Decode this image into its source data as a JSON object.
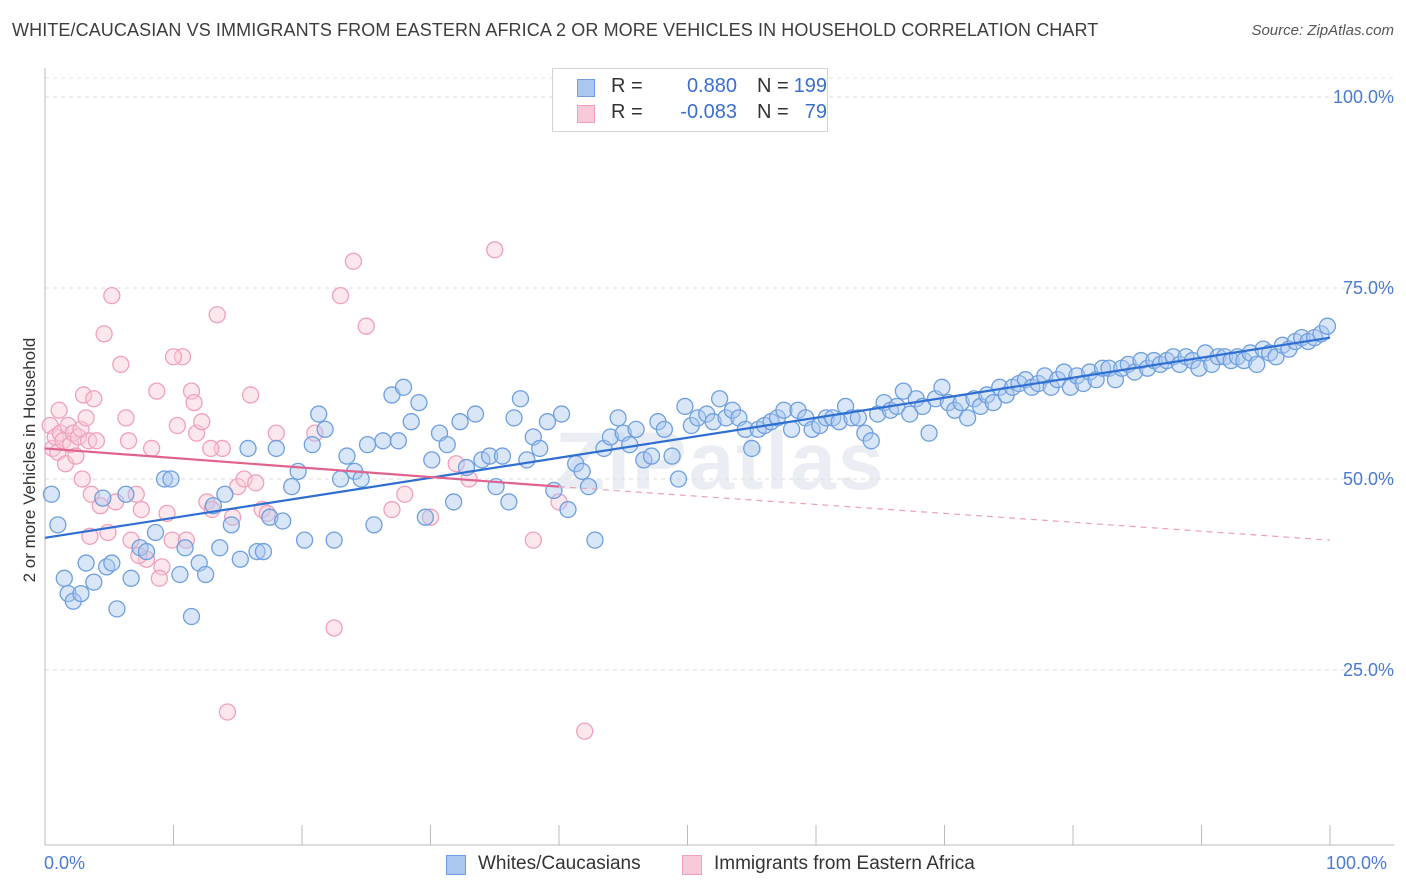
{
  "title": "WHITE/CAUCASIAN VS IMMIGRANTS FROM EASTERN AFRICA 2 OR MORE VEHICLES IN HOUSEHOLD CORRELATION CHART",
  "source": "Source: ZipAtlas.com",
  "watermark": "ZIPatlas",
  "colors": {
    "blue": "#6e9fe0",
    "blue_fill": "#aac8ef",
    "blue_line": "#2f6fd1",
    "pink": "#f0a0bb",
    "pink_fill": "#f8c9d8",
    "pink_line": "#e0628e",
    "tick_text": "#4a7bd0"
  },
  "legend": {
    "rows": [
      {
        "r_label": "R =",
        "r_value": "0.880",
        "n_label": "N =",
        "n_value": "199"
      },
      {
        "r_label": "R =",
        "r_value": "-0.083",
        "n_label": "N =",
        "n_value": "79"
      }
    ]
  },
  "bottom_legend": {
    "series1": "Whites/Caucasians",
    "series2": "Immigrants from Eastern Africa"
  },
  "chart_data": {
    "type": "scatter",
    "title": "WHITE/CAUCASIAN VS IMMIGRANTS FROM EASTERN AFRICA 2 OR MORE VEHICLES IN HOUSEHOLD CORRELATION CHART",
    "xlabel": "",
    "ylabel": "2 or more Vehicles in Household",
    "xlim": [
      0,
      100
    ],
    "ylim": [
      0,
      104
    ],
    "x_tick_labels": [
      "0.0%",
      "100.0%"
    ],
    "y_tick_labels": [
      "25.0%",
      "50.0%",
      "75.0%",
      "100.0%"
    ],
    "y_ticks": [
      25,
      50,
      75,
      100
    ],
    "grid": "horizontal dashed",
    "legend_position": "top-center",
    "series": [
      {
        "name": "Whites/Caucasians",
        "color": "#6e9fe0",
        "trend": {
          "x": [
            0,
            100
          ],
          "y": [
            42.3,
            68.5
          ]
        },
        "points": [
          [
            0.5,
            48
          ],
          [
            1,
            44
          ],
          [
            1.5,
            37
          ],
          [
            1.8,
            35
          ],
          [
            2.2,
            34
          ],
          [
            2.8,
            35
          ],
          [
            3.2,
            39
          ],
          [
            3.8,
            36.5
          ],
          [
            4.5,
            47.5
          ],
          [
            4.8,
            38.5
          ],
          [
            5.2,
            39
          ],
          [
            5.6,
            33
          ],
          [
            6.3,
            48
          ],
          [
            6.7,
            37
          ],
          [
            7.4,
            41
          ],
          [
            7.9,
            40.5
          ],
          [
            8.6,
            43
          ],
          [
            9.3,
            50
          ],
          [
            9.8,
            50
          ],
          [
            10.5,
            37.5
          ],
          [
            10.9,
            41
          ],
          [
            11.4,
            32
          ],
          [
            12,
            39
          ],
          [
            12.5,
            37.5
          ],
          [
            13.1,
            46.5
          ],
          [
            13.6,
            41
          ],
          [
            14,
            48
          ],
          [
            14.5,
            44
          ],
          [
            15.2,
            39.5
          ],
          [
            15.8,
            54
          ],
          [
            16.5,
            40.5
          ],
          [
            17,
            40.5
          ],
          [
            17.5,
            45
          ],
          [
            18,
            54
          ],
          [
            18.5,
            44.5
          ],
          [
            19.2,
            49
          ],
          [
            19.7,
            51
          ],
          [
            20.2,
            42
          ],
          [
            20.8,
            54.5
          ],
          [
            21.3,
            58.5
          ],
          [
            21.8,
            56.5
          ],
          [
            22.5,
            42
          ],
          [
            23,
            50
          ],
          [
            23.5,
            53
          ],
          [
            24.1,
            51
          ],
          [
            24.6,
            50
          ],
          [
            25.1,
            54.5
          ],
          [
            25.6,
            44
          ],
          [
            26.3,
            55
          ],
          [
            27,
            61
          ],
          [
            27.5,
            55
          ],
          [
            27.9,
            62
          ],
          [
            28.5,
            57.5
          ],
          [
            29.1,
            60
          ],
          [
            29.6,
            45
          ],
          [
            30.1,
            52.5
          ],
          [
            30.7,
            56
          ],
          [
            31.3,
            54.5
          ],
          [
            31.8,
            47
          ],
          [
            32.3,
            57.5
          ],
          [
            32.8,
            51.5
          ],
          [
            33.5,
            58.5
          ],
          [
            34,
            52.5
          ],
          [
            34.6,
            53
          ],
          [
            35.1,
            49
          ],
          [
            35.6,
            53
          ],
          [
            36.1,
            47
          ],
          [
            36.5,
            58
          ],
          [
            37,
            60.5
          ],
          [
            37.5,
            52.5
          ],
          [
            38,
            55.5
          ],
          [
            38.5,
            54
          ],
          [
            39.1,
            57.5
          ],
          [
            39.6,
            48.5
          ],
          [
            40.2,
            58.5
          ],
          [
            40.7,
            46
          ],
          [
            41.3,
            52
          ],
          [
            41.8,
            51
          ],
          [
            42.3,
            49
          ],
          [
            42.8,
            42
          ],
          [
            43.5,
            54
          ],
          [
            44,
            55.5
          ],
          [
            44.6,
            58
          ],
          [
            45,
            56
          ],
          [
            45.5,
            54.5
          ],
          [
            46,
            56.5
          ],
          [
            46.6,
            52.5
          ],
          [
            47.2,
            53
          ],
          [
            47.7,
            57.5
          ],
          [
            48.2,
            56.5
          ],
          [
            48.8,
            53
          ],
          [
            49.3,
            50
          ],
          [
            49.8,
            59.5
          ],
          [
            50.3,
            57
          ],
          [
            50.8,
            58
          ],
          [
            51.5,
            58.5
          ],
          [
            52,
            57.5
          ],
          [
            52.5,
            60.5
          ],
          [
            53,
            58
          ],
          [
            53.5,
            59
          ],
          [
            54,
            58
          ],
          [
            54.5,
            56.5
          ],
          [
            55,
            54
          ],
          [
            55.5,
            56.5
          ],
          [
            56,
            57
          ],
          [
            56.5,
            57.5
          ],
          [
            57,
            58
          ],
          [
            57.5,
            59
          ],
          [
            58.1,
            56.5
          ],
          [
            58.6,
            59
          ],
          [
            59.2,
            58
          ],
          [
            59.7,
            56.5
          ],
          [
            60.3,
            57
          ],
          [
            60.8,
            58
          ],
          [
            61.3,
            58
          ],
          [
            61.8,
            57.5
          ],
          [
            62.3,
            59.5
          ],
          [
            62.8,
            58
          ],
          [
            63.3,
            58
          ],
          [
            63.8,
            56
          ],
          [
            64.3,
            55
          ],
          [
            64.8,
            58.5
          ],
          [
            65.3,
            60
          ],
          [
            65.8,
            59
          ],
          [
            66.3,
            59.5
          ],
          [
            66.8,
            61.5
          ],
          [
            67.3,
            58.5
          ],
          [
            67.8,
            60.5
          ],
          [
            68.3,
            59.5
          ],
          [
            68.8,
            56
          ],
          [
            69.3,
            60.5
          ],
          [
            69.8,
            62
          ],
          [
            70.3,
            60
          ],
          [
            70.8,
            59
          ],
          [
            71.3,
            60
          ],
          [
            71.8,
            58
          ],
          [
            72.3,
            60.5
          ],
          [
            72.8,
            59.5
          ],
          [
            73.3,
            61
          ],
          [
            73.8,
            60
          ],
          [
            74.3,
            62
          ],
          [
            74.8,
            61
          ],
          [
            75.3,
            62
          ],
          [
            75.8,
            62.5
          ],
          [
            76.3,
            63
          ],
          [
            76.8,
            62
          ],
          [
            77.3,
            62.5
          ],
          [
            77.8,
            63.5
          ],
          [
            78.3,
            62
          ],
          [
            78.8,
            63
          ],
          [
            79.3,
            64
          ],
          [
            79.8,
            62
          ],
          [
            80.3,
            63.5
          ],
          [
            80.8,
            62.5
          ],
          [
            81.3,
            64
          ],
          [
            81.8,
            63
          ],
          [
            82.3,
            64.5
          ],
          [
            82.8,
            64.5
          ],
          [
            83.3,
            63
          ],
          [
            83.8,
            64.5
          ],
          [
            84.3,
            65
          ],
          [
            84.8,
            64
          ],
          [
            85.3,
            65.5
          ],
          [
            85.8,
            64.5
          ],
          [
            86.3,
            65.5
          ],
          [
            86.8,
            65
          ],
          [
            87.3,
            65.5
          ],
          [
            87.8,
            66
          ],
          [
            88.3,
            65
          ],
          [
            88.8,
            66
          ],
          [
            89.3,
            65.5
          ],
          [
            89.8,
            64.5
          ],
          [
            90.3,
            66.5
          ],
          [
            90.8,
            65
          ],
          [
            91.3,
            66
          ],
          [
            91.8,
            66
          ],
          [
            92.3,
            65.5
          ],
          [
            92.8,
            66
          ],
          [
            93.3,
            65.5
          ],
          [
            93.8,
            66.5
          ],
          [
            94.3,
            65
          ],
          [
            94.8,
            67
          ],
          [
            95.3,
            66.5
          ],
          [
            95.8,
            66
          ],
          [
            96.3,
            67.5
          ],
          [
            96.8,
            67
          ],
          [
            97.3,
            68
          ],
          [
            97.8,
            68.5
          ],
          [
            98.3,
            68
          ],
          [
            98.8,
            68.5
          ],
          [
            99.3,
            69
          ],
          [
            99.8,
            70
          ]
        ]
      },
      {
        "name": "Immigrants from Eastern Africa",
        "color": "#f0a0bb",
        "trend": {
          "x": [
            0,
            40
          ],
          "y": [
            54,
            49
          ],
          "dashed_extension": {
            "x": [
              40,
              100
            ],
            "y": [
              49,
              42
            ]
          }
        },
        "points": [
          [
            0.4,
            57
          ],
          [
            0.6,
            54
          ],
          [
            0.8,
            55.5
          ],
          [
            1,
            53.5
          ],
          [
            1.2,
            56
          ],
          [
            1.4,
            55
          ],
          [
            1.6,
            52
          ],
          [
            1.8,
            57
          ],
          [
            2,
            54.5
          ],
          [
            2.2,
            56
          ],
          [
            2.4,
            53
          ],
          [
            2.6,
            55.5
          ],
          [
            2.8,
            56.5
          ],
          [
            3,
            61
          ],
          [
            3.2,
            58
          ],
          [
            3.4,
            55
          ],
          [
            3.6,
            48
          ],
          [
            3.8,
            60.5
          ],
          [
            4,
            55
          ],
          [
            4.3,
            46.5
          ],
          [
            4.6,
            69
          ],
          [
            4.9,
            43
          ],
          [
            5.2,
            74
          ],
          [
            5.5,
            47
          ],
          [
            5.9,
            65
          ],
          [
            6.3,
            58
          ],
          [
            6.7,
            42
          ],
          [
            7.1,
            48
          ],
          [
            7.5,
            46
          ],
          [
            7.9,
            39.5
          ],
          [
            8.3,
            54
          ],
          [
            8.7,
            61.5
          ],
          [
            9.1,
            38.5
          ],
          [
            9.5,
            45.5
          ],
          [
            9.9,
            42
          ],
          [
            10.3,
            57
          ],
          [
            10.7,
            66
          ],
          [
            11,
            42
          ],
          [
            11.4,
            61.5
          ],
          [
            11.8,
            56
          ],
          [
            12.2,
            57.5
          ],
          [
            12.6,
            47
          ],
          [
            13,
            46
          ],
          [
            13.4,
            71.5
          ],
          [
            13.8,
            54
          ],
          [
            14.2,
            19.5
          ],
          [
            14.6,
            45
          ],
          [
            15,
            49
          ],
          [
            15.5,
            50
          ],
          [
            16,
            61
          ],
          [
            16.4,
            49.5
          ],
          [
            16.9,
            46
          ],
          [
            17.3,
            45.5
          ],
          [
            18,
            56
          ],
          [
            21,
            56
          ],
          [
            22.5,
            30.5
          ],
          [
            23,
            74
          ],
          [
            24,
            78.5
          ],
          [
            25,
            70
          ],
          [
            27,
            46
          ],
          [
            28,
            48
          ],
          [
            30,
            45
          ],
          [
            32,
            52
          ],
          [
            33,
            50
          ],
          [
            35,
            80
          ],
          [
            38,
            42
          ],
          [
            40,
            47
          ],
          [
            42,
            17
          ],
          [
            1.1,
            59
          ],
          [
            2.9,
            50
          ],
          [
            3.5,
            42.5
          ],
          [
            6.5,
            55
          ],
          [
            7.3,
            40
          ],
          [
            8.9,
            37
          ],
          [
            10,
            66
          ],
          [
            11.6,
            60
          ],
          [
            12.9,
            54
          ]
        ]
      }
    ]
  },
  "axis": {
    "ylabel": "2 or more Vehicles in Household",
    "y_ticks": [
      "25.0%",
      "50.0%",
      "75.0%",
      "100.0%"
    ],
    "x_left": "0.0%",
    "x_right": "100.0%"
  }
}
